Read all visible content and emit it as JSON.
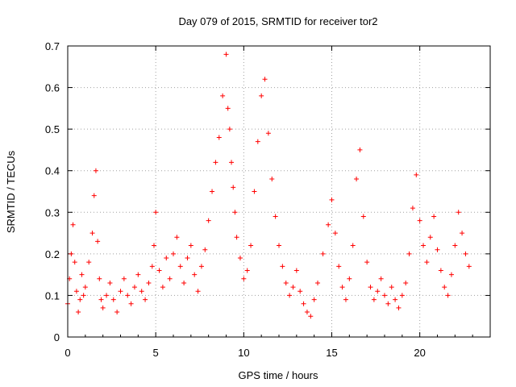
{
  "chart_data": {
    "type": "scatter",
    "title": "Day 079 of 2015, SRMTID for receiver tor2",
    "xlabel": "GPS time / hours",
    "ylabel": "SRMTID / TECUs",
    "xlim": [
      0,
      24
    ],
    "ylim": [
      0,
      0.7
    ],
    "x_ticks": [
      0,
      5,
      10,
      15,
      20
    ],
    "x_tick_labels": [
      "0",
      "5",
      "10",
      "15",
      "20"
    ],
    "y_ticks": [
      0,
      0.1,
      0.2,
      0.3,
      0.4,
      0.5,
      0.6,
      0.7
    ],
    "y_tick_labels": [
      "0",
      "0.1",
      "0.2",
      "0.3",
      "0.4",
      "0.5",
      "0.6",
      "0.7"
    ],
    "grid": true,
    "marker": "+",
    "series": [
      {
        "name": "SRMTID",
        "color": "#ff0000",
        "x": [
          0.0,
          0.1,
          0.2,
          0.3,
          0.4,
          0.5,
          0.6,
          0.7,
          0.8,
          0.9,
          1.0,
          1.2,
          1.4,
          1.5,
          1.6,
          1.7,
          1.8,
          1.9,
          2.0,
          2.2,
          2.4,
          2.6,
          2.8,
          3.0,
          3.2,
          3.4,
          3.6,
          3.8,
          4.0,
          4.2,
          4.4,
          4.6,
          4.8,
          4.9,
          5.0,
          5.2,
          5.4,
          5.6,
          5.8,
          6.0,
          6.2,
          6.4,
          6.6,
          6.8,
          7.0,
          7.2,
          7.4,
          7.6,
          7.8,
          8.0,
          8.2,
          8.4,
          8.6,
          8.8,
          9.0,
          9.1,
          9.2,
          9.3,
          9.4,
          9.5,
          9.6,
          9.8,
          10.0,
          10.2,
          10.4,
          10.6,
          10.8,
          11.0,
          11.2,
          11.4,
          11.6,
          11.8,
          12.0,
          12.2,
          12.4,
          12.6,
          12.8,
          13.0,
          13.2,
          13.4,
          13.6,
          13.8,
          14.0,
          14.2,
          14.5,
          14.8,
          15.0,
          15.2,
          15.4,
          15.6,
          15.8,
          16.0,
          16.2,
          16.4,
          16.6,
          16.8,
          17.0,
          17.2,
          17.4,
          17.6,
          17.8,
          18.0,
          18.2,
          18.4,
          18.6,
          18.8,
          19.0,
          19.2,
          19.4,
          19.6,
          19.8,
          20.0,
          20.2,
          20.4,
          20.6,
          20.8,
          21.0,
          21.2,
          21.4,
          21.6,
          21.8,
          22.0,
          22.2,
          22.4,
          22.6,
          22.8
        ],
        "y": [
          0.08,
          0.14,
          0.2,
          0.27,
          0.18,
          0.11,
          0.06,
          0.09,
          0.15,
          0.1,
          0.12,
          0.18,
          0.25,
          0.34,
          0.4,
          0.23,
          0.14,
          0.09,
          0.07,
          0.1,
          0.13,
          0.09,
          0.06,
          0.11,
          0.14,
          0.1,
          0.08,
          0.12,
          0.15,
          0.11,
          0.09,
          0.13,
          0.17,
          0.22,
          0.3,
          0.16,
          0.12,
          0.19,
          0.14,
          0.2,
          0.24,
          0.17,
          0.13,
          0.19,
          0.22,
          0.15,
          0.11,
          0.17,
          0.21,
          0.28,
          0.35,
          0.42,
          0.48,
          0.58,
          0.68,
          0.55,
          0.5,
          0.42,
          0.36,
          0.3,
          0.24,
          0.19,
          0.14,
          0.16,
          0.22,
          0.35,
          0.47,
          0.58,
          0.62,
          0.49,
          0.38,
          0.29,
          0.22,
          0.17,
          0.13,
          0.1,
          0.12,
          0.16,
          0.11,
          0.08,
          0.06,
          0.05,
          0.09,
          0.13,
          0.2,
          0.27,
          0.33,
          0.25,
          0.17,
          0.12,
          0.09,
          0.14,
          0.22,
          0.38,
          0.45,
          0.29,
          0.18,
          0.12,
          0.09,
          0.11,
          0.14,
          0.1,
          0.08,
          0.12,
          0.09,
          0.07,
          0.1,
          0.13,
          0.2,
          0.31,
          0.39,
          0.28,
          0.22,
          0.18,
          0.24,
          0.29,
          0.21,
          0.16,
          0.12,
          0.1,
          0.15,
          0.22,
          0.3,
          0.25,
          0.2,
          0.17
        ]
      }
    ]
  }
}
